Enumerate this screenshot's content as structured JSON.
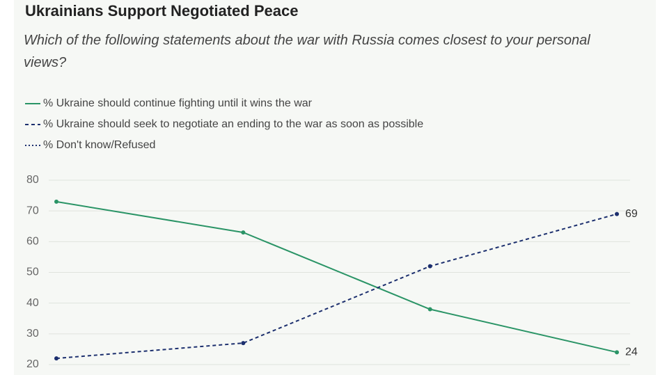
{
  "chart_data": {
    "type": "line",
    "title": "Ukrainians Support Negotiated Peace",
    "subtitle": "Which of the following statements about the war with Russia comes closest to your personal views?",
    "categories": [
      null,
      null,
      null,
      null
    ],
    "series": [
      {
        "name": "% Ukraine should continue fighting until it wins the war",
        "color": "#2a9466",
        "dash": "solid",
        "values": [
          73,
          63,
          38,
          24
        ]
      },
      {
        "name": "% Ukraine should seek to negotiate an ending to the war as soon as possible",
        "color": "#1c2f6e",
        "dash": "dashed",
        "values": [
          22,
          27,
          52,
          69
        ]
      },
      {
        "name": "% Don't know/Refused",
        "color": "#1c2f6e",
        "dash": "dotted",
        "values": [
          null,
          null,
          null,
          null
        ]
      }
    ],
    "ylim": [
      16.6,
      80
    ],
    "yticks": [
      20,
      30,
      40,
      50,
      60,
      70,
      80
    ],
    "grid": true
  }
}
